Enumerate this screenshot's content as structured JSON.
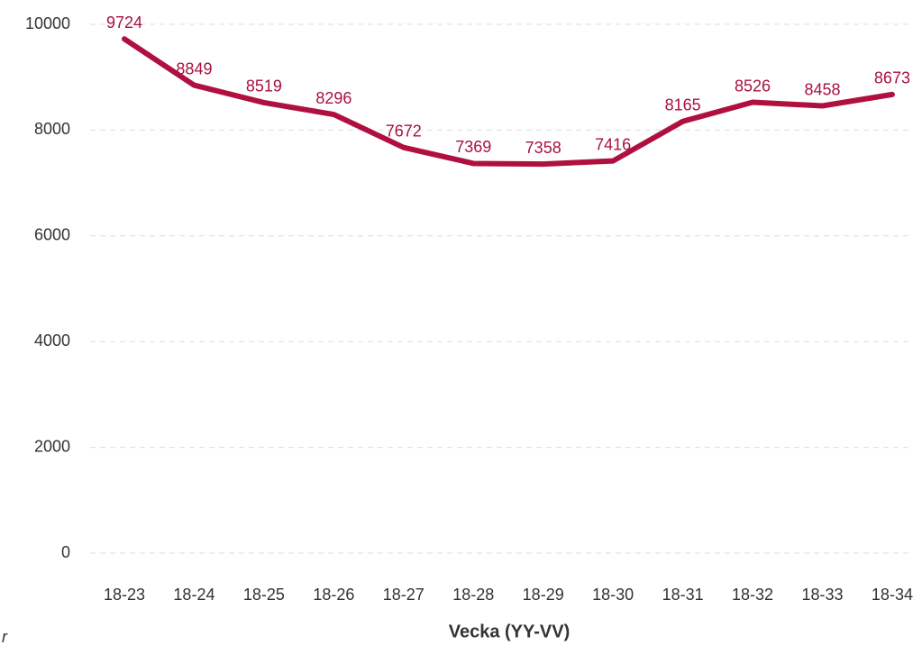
{
  "chart_data": {
    "type": "line",
    "x_label": "Vecka (YY-VV)",
    "annotation": "r",
    "categories": [
      "18-23",
      "18-24",
      "18-25",
      "18-26",
      "18-27",
      "18-28",
      "18-29",
      "18-30",
      "18-31",
      "18-32",
      "18-33",
      "18-34"
    ],
    "series": [
      {
        "color": "#b0103f",
        "values": [
          9724,
          8849,
          8519,
          8296,
          7672,
          7369,
          7358,
          7416,
          8165,
          8526,
          8458,
          8673
        ]
      }
    ],
    "ylim": [
      0,
      10000
    ],
    "yticks": [
      0,
      2000,
      4000,
      6000,
      8000,
      10000
    ],
    "grid": true
  }
}
